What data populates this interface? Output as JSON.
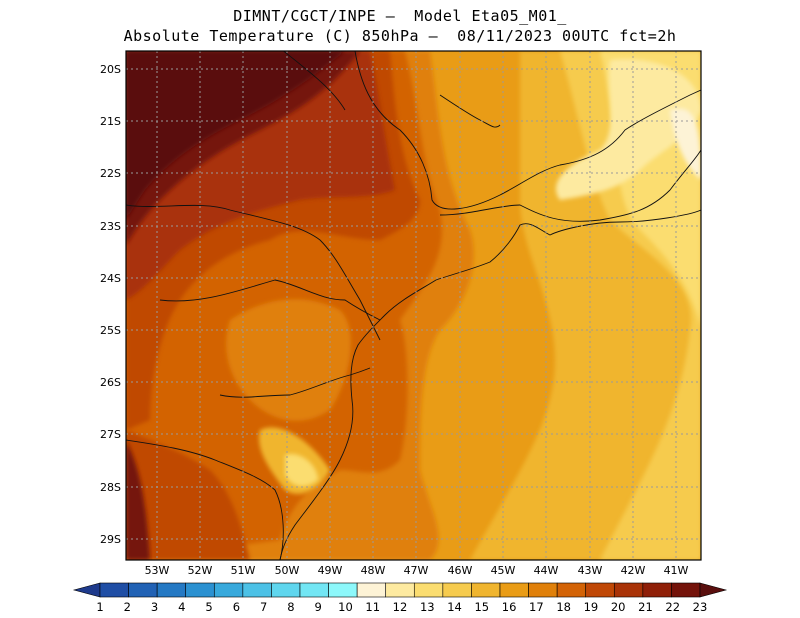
{
  "header": {
    "line1": "DIMNT/CGCT/INPE –  Model Eta05_M01_",
    "line2": "Absolute Temperature (C) 850hPa –  08/11/2023 00UTC fct=2h"
  },
  "map": {
    "lat_labels": [
      "20S",
      "21S",
      "22S",
      "23S",
      "24S",
      "25S",
      "26S",
      "27S",
      "28S",
      "29S"
    ],
    "lon_labels": [
      "53W",
      "52W",
      "51W",
      "50W",
      "49W",
      "48W",
      "47W",
      "46W",
      "45W",
      "44W",
      "43W",
      "42W",
      "41W"
    ],
    "grid": true
  },
  "colorbar": {
    "labels": [
      "1",
      "2",
      "3",
      "4",
      "5",
      "6",
      "7",
      "8",
      "9",
      "10",
      "11",
      "12",
      "13",
      "14",
      "15",
      "16",
      "17",
      "18",
      "19",
      "20",
      "21",
      "22",
      "23"
    ],
    "colors": [
      "#1e3a8c",
      "#1f4ea5",
      "#2162b5",
      "#2479c4",
      "#2b91d1",
      "#38a9dc",
      "#4cc1e6",
      "#5fd6ee",
      "#72e6f4",
      "#8df8fb",
      "#fdf3d6",
      "#fdeaa0",
      "#fbdd70",
      "#f6cb4e",
      "#f0b52f",
      "#e99c16",
      "#e0800a",
      "#d36306",
      "#c04806",
      "#a93307",
      "#8f1f08",
      "#74130a",
      "#5a0f0e"
    ]
  },
  "colors": {
    "border": "#000000",
    "grid": "#9a9a9a"
  }
}
